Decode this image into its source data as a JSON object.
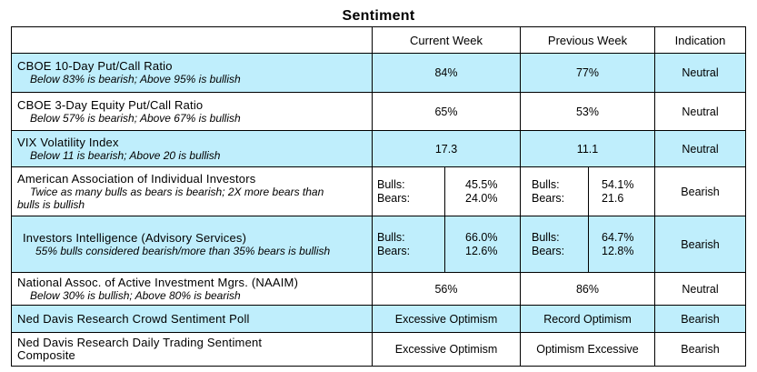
{
  "title": "Sentiment",
  "headers": {
    "current": "Current Week",
    "previous": "Previous Week",
    "indication": "Indication"
  },
  "rows": [
    {
      "name": "CBOE 10-Day Put/Call Ratio",
      "desc": "Below 83% is bearish; Above 95% is bullish",
      "current": "84%",
      "previous": "77%",
      "indication": "Neutral"
    },
    {
      "name": "CBOE 3-Day Equity Put/Call Ratio",
      "desc": "Below 57% is bearish; Above 67% is bullish",
      "current": "65%",
      "previous": "53%",
      "indication": "Neutral"
    },
    {
      "name": "VIX Volatility Index",
      "desc": "Below 11 is bearish; Above 20 is bullish",
      "current": "17.3",
      "previous": "11.1",
      "indication": "Neutral"
    },
    {
      "name": "American Association of Individual Investors",
      "desc_line1": "Twice as many bulls as bears is bearish; 2X more bears than",
      "desc_line2": "bulls is bullish",
      "current_bulls_label": "Bulls:",
      "current_bears_label": "Bears:",
      "current_bulls": "45.5%",
      "current_bears": "24.0%",
      "previous_bulls_label": "Bulls:",
      "previous_bears_label": "Bears:",
      "previous_bulls": "54.1%",
      "previous_bears": "21.6",
      "indication": "Bearish"
    },
    {
      "name": "Investors Intelligence (Advisory Services)",
      "desc": "55% bulls considered bearish/more than 35% bears is bullish",
      "current_bulls_label": "Bulls:",
      "current_bears_label": "Bears:",
      "current_bulls": "66.0%",
      "current_bears": "12.6%",
      "previous_bulls_label": "Bulls:",
      "previous_bears_label": "Bears:",
      "previous_bulls": "64.7%",
      "previous_bears": "12.8%",
      "indication": "Bearish"
    },
    {
      "name": "National Assoc. of Active Investment Mgrs. (NAAIM)",
      "desc": "Below 30% is bullish; Above 80% is bearish",
      "current": "56%",
      "previous": "86%",
      "indication": "Neutral"
    },
    {
      "name": "Ned Davis Research Crowd Sentiment Poll",
      "current": "Excessive Optimism",
      "previous": "Record Optimism",
      "indication": "Bearish"
    },
    {
      "name_line1": "Ned Davis Research Daily Trading Sentiment",
      "name_line2": "Composite",
      "current": "Excessive Optimism",
      "previous": "Optimism Excessive",
      "indication": "Bearish"
    }
  ],
  "colors": {
    "highlight_row": "#bfeefc",
    "border": "#000000"
  }
}
